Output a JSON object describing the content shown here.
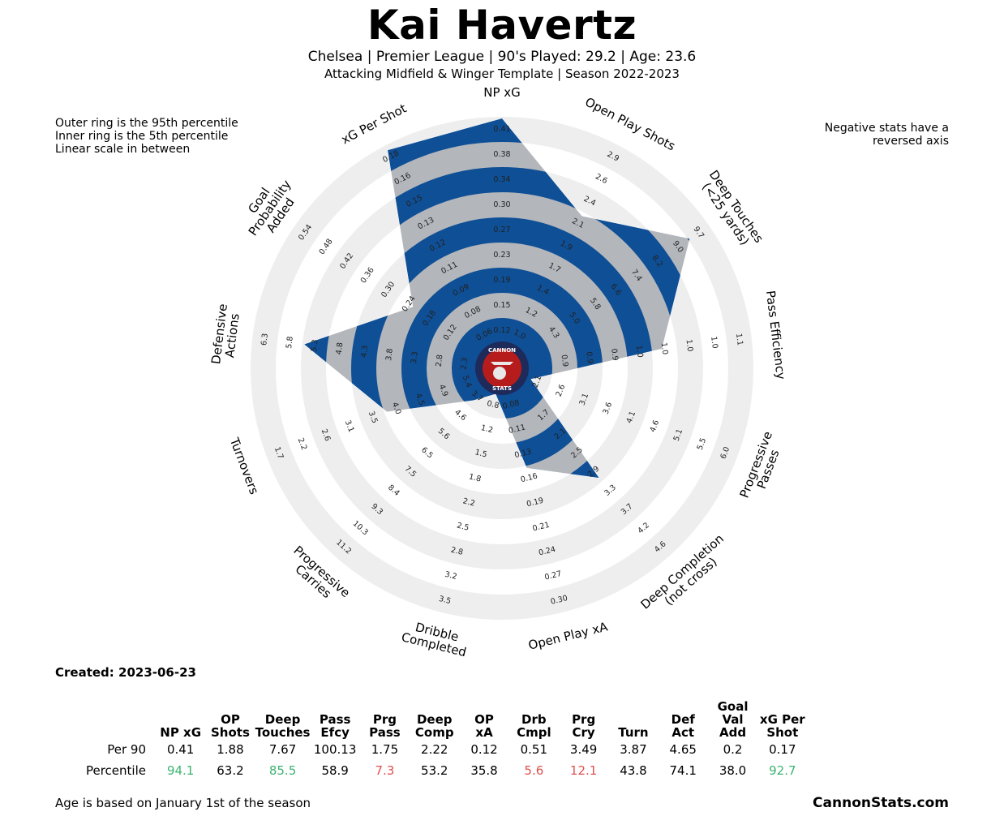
{
  "header": {
    "title": "Kai Havertz",
    "subtitle1": "Chelsea  | Premier League | 90's Played: 29.2 | Age: 23.6",
    "subtitle2": "Attacking Midfield & Winger Template | Season 2022-2023"
  },
  "notes": {
    "left": [
      "Outer ring is the 95th percentile",
      "Inner ring is the 5th percentile",
      "Linear scale in between"
    ],
    "right": [
      "Negative stats have a",
      "reversed axis"
    ]
  },
  "logo": {
    "line1": "CANNON",
    "line2": "STATS"
  },
  "colors": {
    "blue": "#0e4f96",
    "gray": "#b3b6bb",
    "ring": "#eeeeee",
    "good": "#3cb371",
    "bad": "#e05050"
  },
  "chart_data": {
    "type": "radar",
    "percentile_range": [
      5,
      95
    ],
    "axes": [
      {
        "label": [
          "NP xG"
        ],
        "ticks": [
          "0.12",
          "0.15",
          "0.19",
          "0.23",
          "0.27",
          "0.30",
          "0.34",
          "0.38",
          "0.41"
        ],
        "percentile": 94.1
      },
      {
        "label": [
          "Open Play Shots"
        ],
        "ticks": [
          "1.0",
          "1.2",
          "1.4",
          "1.7",
          "1.9",
          "2.1",
          "2.4",
          "2.6",
          "2.9"
        ],
        "percentile": 63.2
      },
      {
        "label": [
          "Deep Touches",
          "(<25 yards)"
        ],
        "ticks": [
          "4.3",
          "5.0",
          "5.8",
          "6.6",
          "7.4",
          "8.2",
          "9.0",
          "9.7"
        ],
        "percentile": 85.5
      },
      {
        "label": [
          "Pass Efficiency"
        ],
        "ticks": [
          "0.9",
          "0.9",
          "0.9",
          "1.0",
          "1.0",
          "1.0",
          "1.0",
          "1.1"
        ],
        "percentile": 58.9
      },
      {
        "label": [
          "Progressive",
          "Passes"
        ],
        "ticks": [
          "2.1",
          "2.6",
          "3.1",
          "3.6",
          "4.1",
          "4.6",
          "5.1",
          "5.5",
          "6.0"
        ],
        "percentile": 7.3
      },
      {
        "label": [
          "Deep Completion",
          "(not cross)"
        ],
        "ticks": [
          "1.7",
          "2.1",
          "2.5",
          "2.9",
          "3.3",
          "3.7",
          "4.2",
          "4.6"
        ],
        "percentile": 53.2
      },
      {
        "label": [
          "Open Play xA"
        ],
        "ticks": [
          "0.08",
          "0.11",
          "0.13",
          "0.16",
          "0.19",
          "0.21",
          "0.24",
          "0.27",
          "0.30"
        ],
        "percentile": 35.8
      },
      {
        "label": [
          "Dribble",
          "Completed"
        ],
        "ticks": [
          "0.8",
          "1.2",
          "1.5",
          "1.8",
          "2.2",
          "2.5",
          "2.8",
          "3.2",
          "3.5"
        ],
        "percentile": 5.6
      },
      {
        "label": [
          "Progressive",
          "Carries"
        ],
        "ticks": [
          "3.7",
          "4.6",
          "5.6",
          "6.5",
          "7.5",
          "8.4",
          "9.3",
          "10.3",
          "11.2"
        ],
        "percentile": 12.1
      },
      {
        "label": [
          "Turnovers"
        ],
        "ticks": [
          "5.4",
          "4.9",
          "4.5",
          "4.0",
          "3.5",
          "3.1",
          "2.6",
          "2.2",
          "1.7"
        ],
        "percentile": 43.8
      },
      {
        "label": [
          "Defensive",
          "Actions"
        ],
        "ticks": [
          "2.3",
          "2.8",
          "3.3",
          "3.8",
          "4.3",
          "4.8",
          "5.3",
          "5.8",
          "6.3"
        ],
        "percentile": 74.1
      },
      {
        "label": [
          "Goal",
          "Probability",
          "Added"
        ],
        "ticks": [
          "0.12",
          "0.18",
          "0.24",
          "0.30",
          "0.36",
          "0.42",
          "0.48",
          "0.54"
        ],
        "percentile": 38.0
      },
      {
        "label": [
          "xG Per Shot"
        ],
        "ticks": [
          "0.06",
          "0.08",
          "0.09",
          "0.11",
          "0.12",
          "0.13",
          "0.15",
          "0.16",
          "0.18"
        ],
        "percentile": 92.7
      }
    ]
  },
  "created": "Created: 2023-06-23",
  "table": {
    "headers": [
      [
        "NP xG"
      ],
      [
        "OP",
        "Shots"
      ],
      [
        "Deep",
        "Touches"
      ],
      [
        "Pass",
        "Efcy"
      ],
      [
        "Prg",
        "Pass"
      ],
      [
        "Deep",
        "Comp"
      ],
      [
        "OP",
        "xA"
      ],
      [
        "Drb",
        "Cmpl"
      ],
      [
        "Prg",
        "Cry"
      ],
      [
        "Turn"
      ],
      [
        "Def",
        "Act"
      ],
      [
        "Goal",
        "Val Add"
      ],
      [
        "xG Per",
        "Shot"
      ]
    ],
    "rows": [
      {
        "label": "Per 90",
        "values": [
          "0.41",
          "1.88",
          "7.67",
          "100.13",
          "1.75",
          "2.22",
          "0.12",
          "0.51",
          "3.49",
          "3.87",
          "4.65",
          "0.2",
          "0.17"
        ],
        "status": [
          "",
          "",
          "",
          "",
          "",
          "",
          "",
          "",
          "",
          "",
          "",
          "",
          ""
        ]
      },
      {
        "label": "Percentile",
        "values": [
          "94.1",
          "63.2",
          "85.5",
          "58.9",
          "7.3",
          "53.2",
          "35.8",
          "5.6",
          "12.1",
          "43.8",
          "74.1",
          "38.0",
          "92.7"
        ],
        "status": [
          "good",
          "",
          "good",
          "",
          "bad",
          "",
          "",
          "bad",
          "bad",
          "",
          "",
          "",
          "good"
        ]
      }
    ]
  },
  "footer": {
    "left": "Age is based on January 1st of the season",
    "right": "CannonStats.com"
  }
}
